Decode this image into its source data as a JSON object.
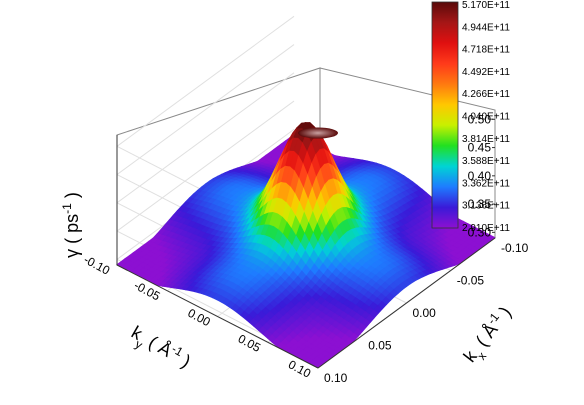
{
  "chart_data": {
    "type": "surface3d",
    "title": "",
    "z_axis": {
      "label": "γ ( ps⁻¹ )",
      "ticks": [
        "0.30",
        "0.35",
        "0.40",
        "0.45",
        "0.50"
      ],
      "range": [
        0.29,
        0.52
      ]
    },
    "y_axis": {
      "label": "k_y ( Å⁻¹ )",
      "ticks": [
        "-0.10",
        "-0.05",
        "0.00",
        "0.05",
        "0.10"
      ],
      "range": [
        -0.1,
        0.1
      ]
    },
    "x_axis": {
      "label": "k_x ( Å⁻¹ )",
      "ticks": [
        "-0.10",
        "-0.05",
        "0.00",
        "0.05",
        "0.10"
      ],
      "range": [
        -0.1,
        0.1
      ]
    },
    "colorbar": {
      "labels": [
        "5.170E+11",
        "4.944E+11",
        "4.718E+11",
        "4.492E+11",
        "4.266E+11",
        "4.040E+11",
        "3.814E+11",
        "3.588E+11",
        "3.362E+11",
        "3.136E+11",
        "2.910E+11"
      ],
      "colors": [
        "#5a0a0a",
        "#a51616",
        "#e01010",
        "#ff3a1a",
        "#ff7a10",
        "#ffc800",
        "#c8f000",
        "#22e020",
        "#00d4d4",
        "#1e7cff",
        "#3a1ad8",
        "#8c10d2"
      ]
    },
    "surface_peak": {
      "kx": 0.0,
      "ky": 0.0,
      "gamma": 0.517
    },
    "surface_min": 0.291,
    "grid": true
  }
}
